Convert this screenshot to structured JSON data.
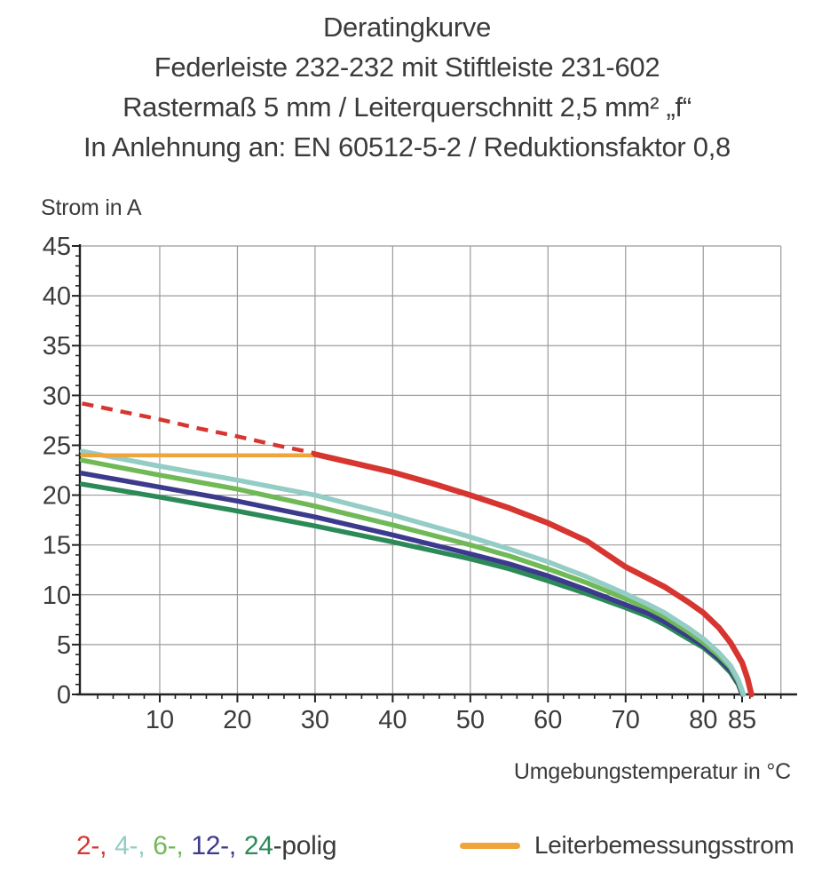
{
  "title": {
    "line1": "Deratingkurve",
    "line2": "Federleiste 232-232 mit Stiftleiste 231-602",
    "line3": "Rastermaß 5 mm / Leiterquerschnitt 2,5 mm² „f“",
    "line4": "In Anlehnung an: EN 60512-5-2 / Reduktionsfaktor 0,8"
  },
  "colors": {
    "red": "#d6362f",
    "orange": "#f0a43c",
    "cyan": "#93cdc6",
    "light_green": "#70b957",
    "navy": "#3b3a8c",
    "dark_green": "#2b8a58",
    "grid": "#9b9b9b",
    "axis": "#222222",
    "text": "#3b3b3b"
  },
  "chart_data": {
    "type": "line",
    "title": "Deratingkurve",
    "xlabel": "Umgebungstemperatur in °C",
    "ylabel": "Strom in A",
    "xlim": [
      0,
      91
    ],
    "ylim": [
      0,
      45
    ],
    "grid": true,
    "legend_position": "bottom",
    "x_major_ticks": [
      10,
      20,
      30,
      40,
      50,
      60,
      70,
      80,
      85
    ],
    "y_major_ticks": [
      0,
      5,
      10,
      15,
      20,
      25,
      30,
      35,
      40,
      45
    ],
    "x_minor_step": 2,
    "y_minor_step": 1,
    "x_gridlines": [
      10,
      20,
      30,
      40,
      50,
      60,
      70,
      80,
      90
    ],
    "y_gridlines": [
      5,
      10,
      15,
      20,
      25,
      30,
      35,
      40,
      45
    ],
    "series": [
      {
        "name": "24-polig",
        "color": "#2b8a58",
        "width": 5.5,
        "dash": "none",
        "points": [
          [
            0,
            21.1
          ],
          [
            10,
            19.8
          ],
          [
            20,
            18.4
          ],
          [
            30,
            16.9
          ],
          [
            40,
            15.3
          ],
          [
            50,
            13.6
          ],
          [
            55,
            12.6
          ],
          [
            60,
            11.4
          ],
          [
            65,
            10.1
          ],
          [
            70,
            8.7
          ],
          [
            73,
            7.8
          ],
          [
            75,
            7.0
          ],
          [
            78,
            5.6
          ],
          [
            80,
            4.7
          ],
          [
            82,
            3.4
          ],
          [
            83.5,
            2.2
          ],
          [
            84.5,
            1.0
          ],
          [
            85,
            0
          ]
        ]
      },
      {
        "name": "12-polig",
        "color": "#3b3a8c",
        "width": 5.5,
        "dash": "none",
        "points": [
          [
            0,
            22.2
          ],
          [
            10,
            20.8
          ],
          [
            20,
            19.4
          ],
          [
            30,
            17.8
          ],
          [
            40,
            16.0
          ],
          [
            50,
            14.1
          ],
          [
            55,
            13.1
          ],
          [
            60,
            11.9
          ],
          [
            65,
            10.5
          ],
          [
            70,
            9.0
          ],
          [
            73,
            8.1
          ],
          [
            75,
            7.3
          ],
          [
            78,
            5.9
          ],
          [
            80,
            4.9
          ],
          [
            82,
            3.6
          ],
          [
            83.5,
            2.4
          ],
          [
            84.5,
            1.1
          ],
          [
            85,
            0
          ]
        ]
      },
      {
        "name": "6-polig",
        "color": "#70b957",
        "width": 5.5,
        "dash": "none",
        "points": [
          [
            0,
            23.5
          ],
          [
            10,
            22.0
          ],
          [
            20,
            20.6
          ],
          [
            30,
            18.9
          ],
          [
            40,
            17.0
          ],
          [
            50,
            15.0
          ],
          [
            55,
            13.9
          ],
          [
            60,
            12.6
          ],
          [
            65,
            11.2
          ],
          [
            70,
            9.6
          ],
          [
            73,
            8.6
          ],
          [
            75,
            7.8
          ],
          [
            78,
            6.3
          ],
          [
            80,
            5.2
          ],
          [
            82,
            3.9
          ],
          [
            83.5,
            2.7
          ],
          [
            84.5,
            1.3
          ],
          [
            85.1,
            0
          ]
        ]
      },
      {
        "name": "4-polig",
        "color": "#93cdc6",
        "width": 5.5,
        "dash": "none",
        "points": [
          [
            0,
            24.4
          ],
          [
            10,
            22.9
          ],
          [
            20,
            21.5
          ],
          [
            30,
            20.0
          ],
          [
            40,
            18.0
          ],
          [
            50,
            15.8
          ],
          [
            55,
            14.6
          ],
          [
            60,
            13.3
          ],
          [
            65,
            11.8
          ],
          [
            70,
            10.1
          ],
          [
            73,
            9.0
          ],
          [
            75,
            8.2
          ],
          [
            78,
            6.7
          ],
          [
            80,
            5.6
          ],
          [
            82,
            4.2
          ],
          [
            83.5,
            2.9
          ],
          [
            84.5,
            1.5
          ],
          [
            85.2,
            0
          ]
        ]
      },
      {
        "name": "Leiterbemessungsstrom",
        "color": "#f0a43c",
        "width": 4.5,
        "dash": "none",
        "points": [
          [
            0,
            24.0
          ],
          [
            30.5,
            24.0
          ]
        ]
      },
      {
        "name": "2-polig (gestrichelt)",
        "color": "#d6362f",
        "width": 4.5,
        "dash": "dashed",
        "points": [
          [
            0,
            29.2
          ],
          [
            5,
            28.4
          ],
          [
            10,
            27.6
          ],
          [
            15,
            26.7
          ],
          [
            20,
            25.9
          ],
          [
            25,
            25.0
          ],
          [
            30,
            24.2
          ]
        ]
      },
      {
        "name": "2-polig",
        "color": "#d6362f",
        "width": 6.5,
        "dash": "none",
        "points": [
          [
            30,
            24.1
          ],
          [
            35,
            23.2
          ],
          [
            40,
            22.3
          ],
          [
            45,
            21.2
          ],
          [
            50,
            20.0
          ],
          [
            55,
            18.7
          ],
          [
            60,
            17.2
          ],
          [
            65,
            15.4
          ],
          [
            70,
            12.8
          ],
          [
            73,
            11.6
          ],
          [
            75,
            10.8
          ],
          [
            78,
            9.3
          ],
          [
            80,
            8.2
          ],
          [
            82,
            6.7
          ],
          [
            83.5,
            5.2
          ],
          [
            85,
            3.2
          ],
          [
            85.7,
            1.6
          ],
          [
            86.2,
            0
          ]
        ]
      }
    ]
  },
  "legend": {
    "poles": {
      "items": [
        {
          "label": "2-,",
          "color": "#d6362f"
        },
        {
          "label": "4-,",
          "color": "#93cdc6"
        },
        {
          "label": "6-,",
          "color": "#70b957"
        },
        {
          "label": "12-,",
          "color": "#3b3a8c"
        },
        {
          "label": "24",
          "color": "#2b8a58"
        }
      ],
      "suffix": "-polig",
      "suffix_color": "#3b3b3b"
    },
    "rated_current_label": "Leiterbemessungsstrom",
    "rated_current_color": "#f0a43c"
  }
}
